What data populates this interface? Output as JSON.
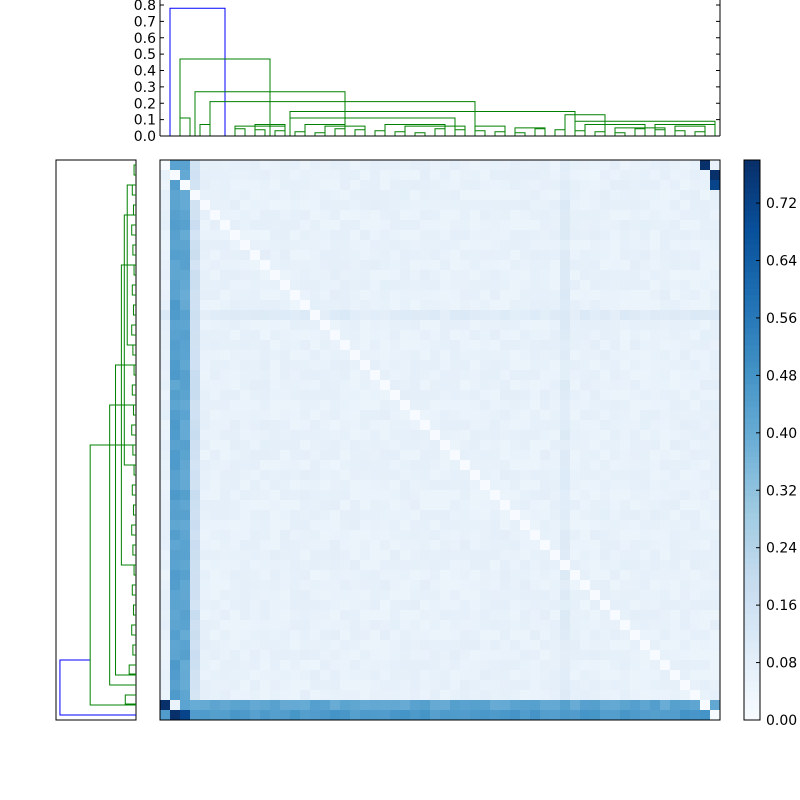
{
  "chart_data": [
    {
      "type": "dendrogram",
      "orientation": "top",
      "title": "",
      "xlabel": "",
      "ylabel": "",
      "ylim": [
        0,
        0.8
      ],
      "ytick_labels": [
        "0.0",
        "0.1",
        "0.2",
        "0.3",
        "0.4",
        "0.5",
        "0.6",
        "0.7",
        "0.8"
      ],
      "yticks": [
        0,
        0.1,
        0.2,
        0.3,
        0.4,
        0.5,
        0.6,
        0.7,
        0.8
      ],
      "leaf_count": 56,
      "grid": false,
      "link_colors": {
        "above_threshold": "#0000ff",
        "cluster": "#008000"
      },
      "links": [
        {
          "x1": 0.5,
          "x2": 6.0,
          "h": 0.78,
          "color": "above"
        },
        {
          "x1": 1.5,
          "x2": 10.5,
          "h": 0.47,
          "color": "cluster"
        },
        {
          "x1": 3.0,
          "x2": 18.0,
          "h": 0.27,
          "color": "cluster"
        },
        {
          "x1": 4.5,
          "x2": 31.0,
          "h": 0.21,
          "color": "cluster"
        },
        {
          "x1": 12.5,
          "x2": 41.0,
          "h": 0.15,
          "color": "cluster"
        },
        {
          "x1": 2.0,
          "x2": 2.0,
          "h": 0.11,
          "color": "cluster"
        },
        {
          "x1": 40.0,
          "x2": 44.0,
          "h": 0.13,
          "color": "cluster"
        },
        {
          "x1": 12.5,
          "x2": 29.0,
          "h": 0.11,
          "color": "cluster"
        },
        {
          "x1": 4.0,
          "x2": 4.0,
          "h": 0.07,
          "color": "cluster"
        },
        {
          "x1": 41.0,
          "x2": 55.0,
          "h": 0.09,
          "color": "cluster"
        },
        {
          "x1": 42.0,
          "x2": 48.0,
          "h": 0.07,
          "color": "cluster"
        },
        {
          "x1": 49.0,
          "x2": 55.0,
          "h": 0.07,
          "color": "cluster"
        },
        {
          "x1": 7.0,
          "x2": 12.0,
          "h": 0.06,
          "color": "cluster"
        },
        {
          "x1": 9.0,
          "x2": 12.0,
          "h": 0.07,
          "color": "cluster"
        },
        {
          "x1": 14.0,
          "x2": 18.0,
          "h": 0.07,
          "color": "cluster"
        },
        {
          "x1": 16.0,
          "x2": 20.0,
          "h": 0.06,
          "color": "cluster"
        },
        {
          "x1": 22.0,
          "x2": 28.0,
          "h": 0.07,
          "color": "cluster"
        },
        {
          "x1": 24.0,
          "x2": 30.0,
          "h": 0.06,
          "color": "cluster"
        },
        {
          "x1": 31.0,
          "x2": 34.0,
          "h": 0.06,
          "color": "cluster"
        },
        {
          "x1": 35.0,
          "x2": 38.0,
          "h": 0.05,
          "color": "cluster"
        },
        {
          "x1": 45.0,
          "x2": 50.0,
          "h": 0.05,
          "color": "cluster"
        },
        {
          "x1": 51.0,
          "x2": 54.0,
          "h": 0.06,
          "color": "cluster"
        }
      ]
    },
    {
      "type": "dendrogram",
      "orientation": "left",
      "leaf_count": 56,
      "link_colors": {
        "above_threshold": "#0000ff",
        "cluster": "#008000"
      }
    },
    {
      "type": "heatmap",
      "rows": 56,
      "cols": 56,
      "colormap": "Blues",
      "colormap_stops": [
        "#f7fbff",
        "#deebf7",
        "#c6dbef",
        "#9ecae1",
        "#6baed6",
        "#4292c6",
        "#2171b5",
        "#08519c",
        "#08306b"
      ],
      "value_range": [
        0.0,
        0.78
      ],
      "diagonal_value": 0.0,
      "base_value": 0.06,
      "outlier_rows": [
        {
          "index": 54,
          "value": 0.42
        },
        {
          "index": 55,
          "value": 0.46
        }
      ],
      "outlier_cols": [
        {
          "index": 1,
          "value": 0.44
        },
        {
          "index": 2,
          "value": 0.42
        },
        {
          "index": 3,
          "value": 0.16
        }
      ],
      "special_cells": [
        {
          "r": 54,
          "c": 0,
          "value": 0.78
        },
        {
          "r": 55,
          "c": 1,
          "value": 0.78
        },
        {
          "r": 55,
          "c": 2,
          "value": 0.72
        },
        {
          "r": 54,
          "c": 1,
          "value": 0.05
        }
      ],
      "light_band_col": 40,
      "light_band_row": 15,
      "colorbar": {
        "ticks": [
          0,
          0.08,
          0.16,
          0.24,
          0.32,
          0.4,
          0.48,
          0.56,
          0.64,
          0.72
        ],
        "tick_labels": [
          "0.00",
          "0.08",
          "0.16",
          "0.24",
          "0.32",
          "0.40",
          "0.48",
          "0.56",
          "0.64",
          "0.72"
        ]
      }
    }
  ]
}
